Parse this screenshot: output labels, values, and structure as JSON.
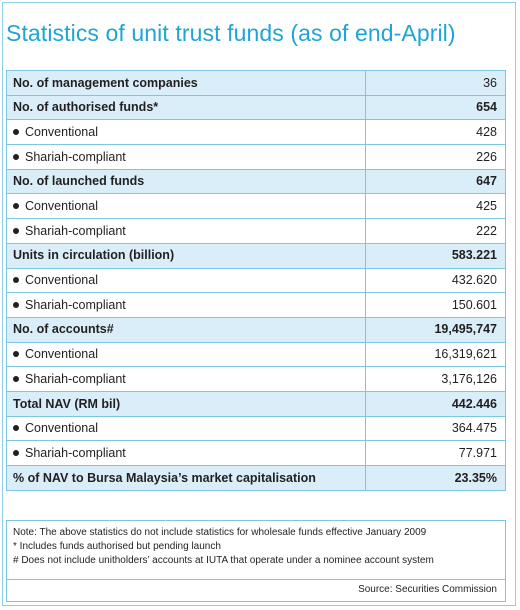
{
  "title": "Statistics of unit trust funds (as of end-April)",
  "rows": [
    {
      "label": "No. of management companies",
      "value": "36",
      "bold_value": false
    },
    {
      "label": "No. of authorised funds*",
      "value": "654"
    },
    {
      "label": "Conventional",
      "value": "428"
    },
    {
      "label": "Shariah-compliant",
      "value": "226"
    },
    {
      "label": "No. of launched funds",
      "value": "647"
    },
    {
      "label": "Conventional",
      "value": "425"
    },
    {
      "label": "Shariah-compliant",
      "value": "222"
    },
    {
      "label": "Units in circulation (billion)",
      "value": "583.221"
    },
    {
      "label": "Conventional",
      "value": "432.620"
    },
    {
      "label": "Shariah-compliant",
      "value": "150.601"
    },
    {
      "label": "No. of accounts#",
      "value": "19,495,747"
    },
    {
      "label": "Conventional",
      "value": "16,319,621"
    },
    {
      "label": "Shariah-compliant",
      "value": "3,176,126"
    },
    {
      "label": "Total NAV (RM bil)",
      "value": "442.446"
    },
    {
      "label": "Conventional",
      "value": "364.475"
    },
    {
      "label": "Shariah-compliant",
      "value": "77.971"
    },
    {
      "label": "% of NAV to Bursa Malaysia’s market capitalisation",
      "value": "23.35%"
    }
  ],
  "notes": [
    "Note: The above statistics do not include statistics for wholesale funds effective January 2009",
    "* Includes funds authorised but pending launch",
    "# Does not include unitholders’ accounts at IUTA that operate under a nominee account system"
  ],
  "source": "Source: Securities Commission",
  "colors": {
    "title": "#1fa5d5",
    "border": "#7fc5e0",
    "shade": "#d9eef8"
  }
}
